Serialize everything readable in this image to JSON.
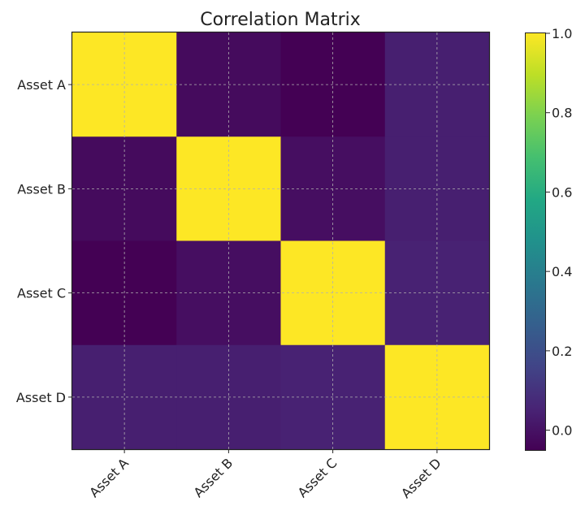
{
  "chart_data": {
    "type": "heatmap",
    "title": "Correlation Matrix",
    "xlabel": "",
    "ylabel": "",
    "x_labels": [
      "Asset A",
      "Asset B",
      "Asset C",
      "Asset D"
    ],
    "y_labels": [
      "Asset A",
      "Asset B",
      "Asset C",
      "Asset D"
    ],
    "values": [
      [
        1.0,
        -0.02,
        -0.05,
        0.04
      ],
      [
        -0.02,
        1.0,
        -0.01,
        0.04
      ],
      [
        -0.05,
        -0.01,
        1.0,
        0.05
      ],
      [
        0.04,
        0.04,
        0.05,
        1.0
      ]
    ],
    "colormap": "viridis",
    "colorbar": {
      "range": [
        -0.05,
        1.0
      ],
      "ticks": [
        0.0,
        0.2,
        0.4,
        0.6,
        0.8,
        1.0
      ],
      "tick_labels": [
        "0.0",
        "0.2",
        "0.4",
        "0.6",
        "0.8",
        "1.0"
      ]
    },
    "grid": true
  }
}
